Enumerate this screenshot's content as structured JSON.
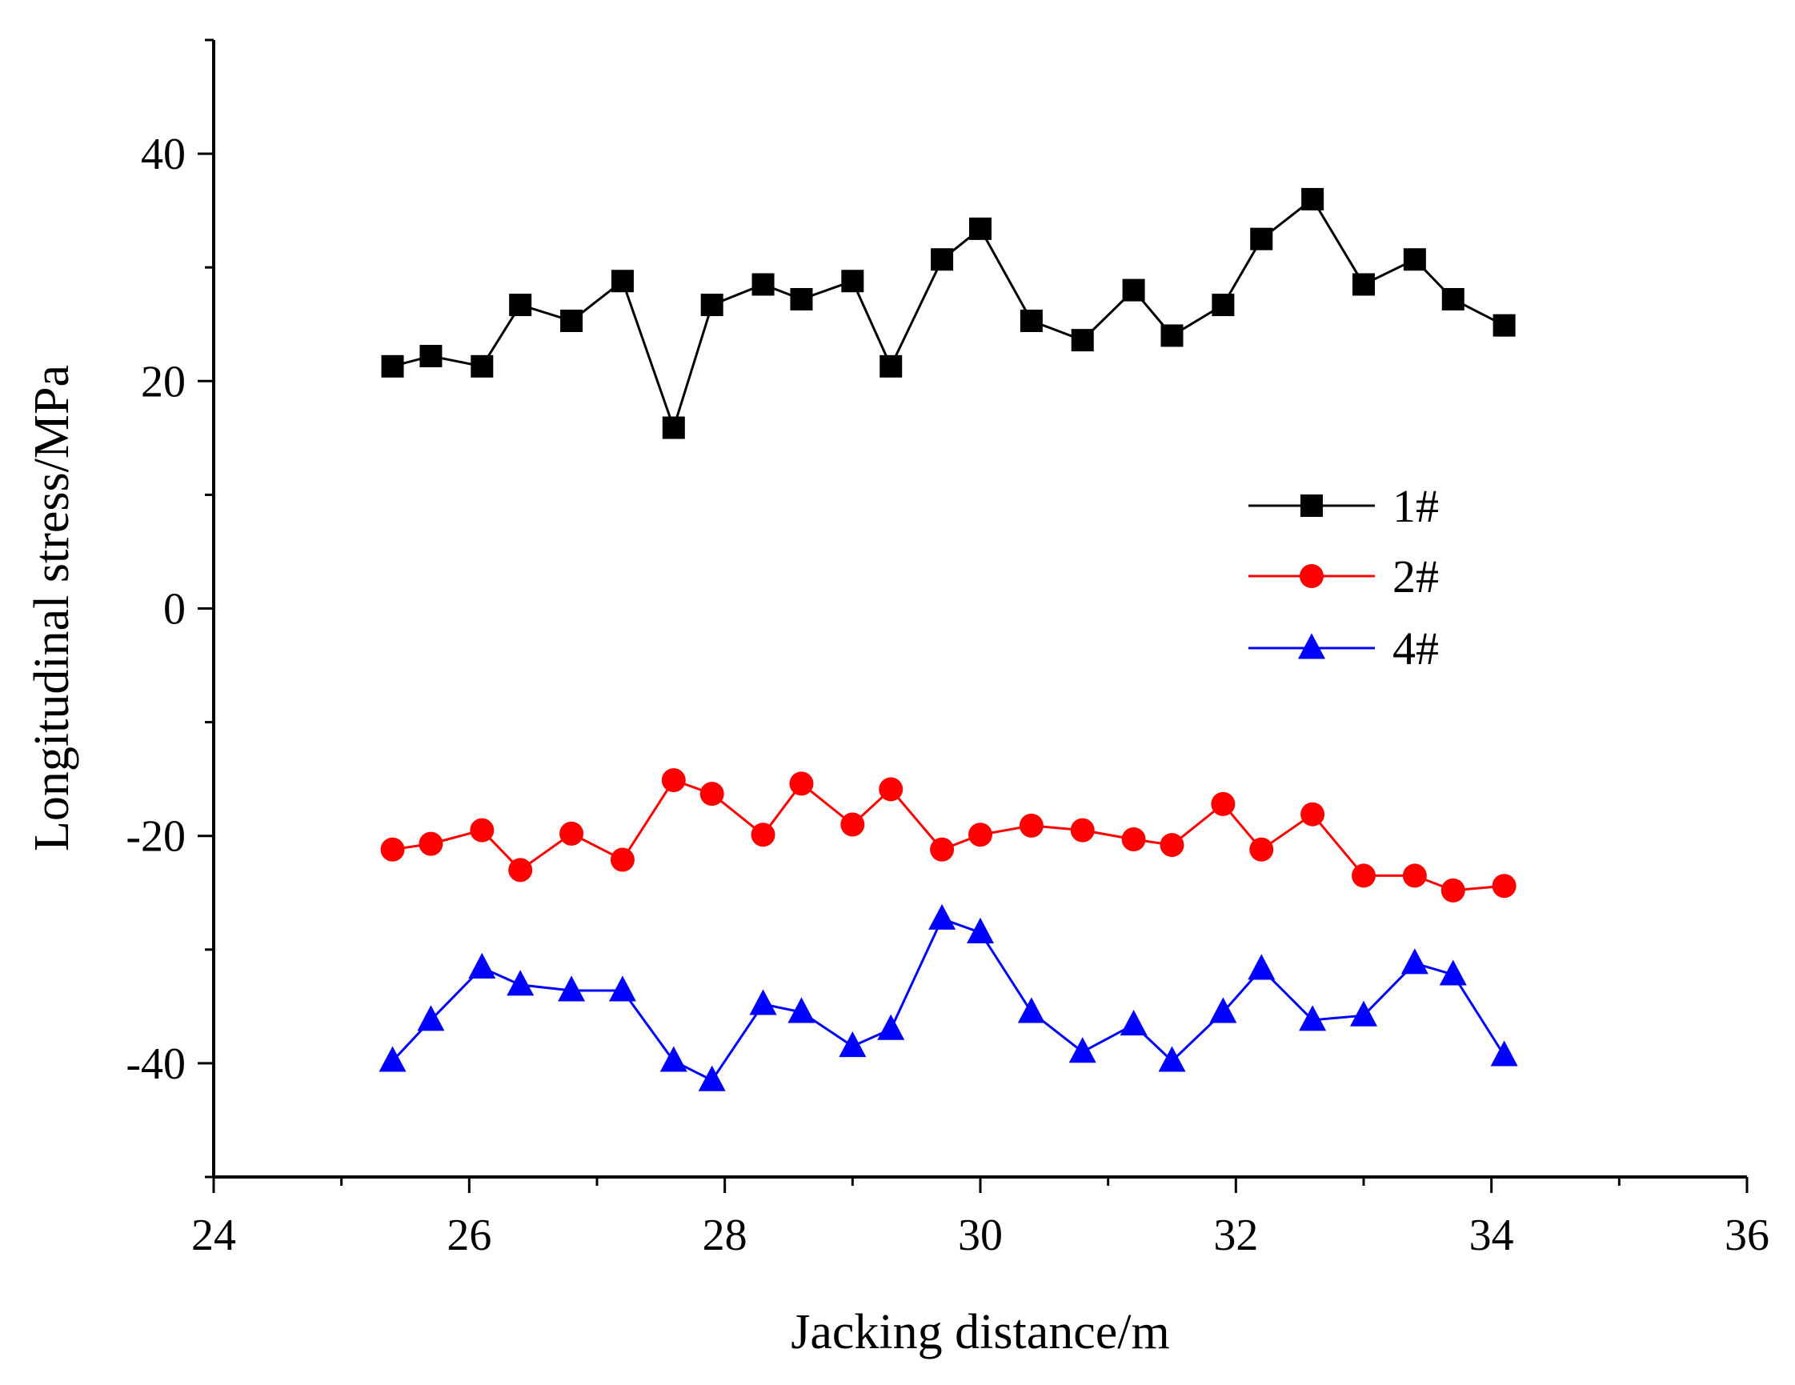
{
  "chart_data": {
    "type": "line",
    "title": "",
    "xlabel": "Jacking distance/m",
    "ylabel": "Longitudinal stress/MPa",
    "xlim": [
      24,
      36
    ],
    "ylim": [
      -50,
      50
    ],
    "x_ticks": [
      24,
      26,
      28,
      30,
      32,
      34,
      36
    ],
    "y_ticks": [
      -40,
      -20,
      0,
      20,
      40
    ],
    "x_tick_labels": [
      "24",
      "26",
      "28",
      "30",
      "32",
      "34",
      "36"
    ],
    "y_tick_labels": [
      "-40",
      "-20",
      "0",
      "20",
      "40"
    ],
    "legend_position": "center-right",
    "x": [
      25.4,
      25.7,
      26.1,
      26.4,
      26.8,
      27.2,
      27.6,
      27.9,
      28.3,
      28.6,
      29.0,
      29.3,
      29.7,
      30.0,
      30.4,
      30.8,
      31.2,
      31.5,
      31.9,
      32.2,
      32.6,
      33.0,
      33.4,
      33.7,
      34.1
    ],
    "series": [
      {
        "name": "1#",
        "color": "#000000",
        "marker": "square",
        "values": [
          21.3,
          22.2,
          21.3,
          26.7,
          25.3,
          28.8,
          15.9,
          26.7,
          28.5,
          27.2,
          28.8,
          21.3,
          30.7,
          33.4,
          25.3,
          23.6,
          28.0,
          24.0,
          26.7,
          32.5,
          36.0,
          28.5,
          30.7,
          27.2,
          24.9
        ]
      },
      {
        "name": "2#",
        "color": "#ff0000",
        "marker": "circle",
        "values": [
          -21.2,
          -20.7,
          -19.5,
          -23.0,
          -19.8,
          -22.1,
          -15.1,
          -16.3,
          -19.9,
          -15.4,
          -19.0,
          -15.9,
          -21.2,
          -19.9,
          -19.1,
          -19.5,
          -20.3,
          -20.8,
          -17.2,
          -21.2,
          -18.1,
          -23.5,
          -23.5,
          -24.8,
          -24.4
        ]
      },
      {
        "name": "4#",
        "color": "#0000ff",
        "marker": "triangle",
        "values": [
          -39.8,
          -36.2,
          -31.6,
          -33.1,
          -33.6,
          -33.6,
          -39.8,
          -41.5,
          -34.8,
          -35.5,
          -38.5,
          -37.0,
          -27.3,
          -28.5,
          -35.5,
          -39.0,
          -36.6,
          -39.8,
          -35.5,
          -31.7,
          -36.2,
          -35.8,
          -31.2,
          -32.2,
          -39.3
        ]
      }
    ]
  }
}
